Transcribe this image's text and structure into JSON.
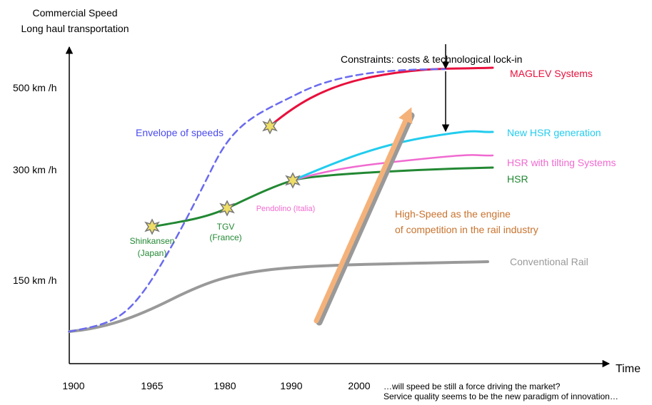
{
  "axis": {
    "y_title": [
      "Commercial Speed",
      "Long haul transportation"
    ],
    "x_title": "Time",
    "y_labels": [
      "500 km /h",
      "300 km /h",
      "150 km /h"
    ],
    "x_labels": [
      "1900",
      "1965",
      "1980",
      "1990",
      "2000"
    ]
  },
  "curves": {
    "maglev": "MAGLEV Systems",
    "new_hsr": "New HSR generation",
    "tilting": "HSR with tilting Systems",
    "hsr": "HSR",
    "conventional": "Conventional Rail",
    "envelope": "Envelope of speeds"
  },
  "milestones": {
    "shinkansen": [
      "Shinkansen",
      "(Japan)"
    ],
    "tgv": [
      "TGV",
      "(France)"
    ],
    "pendolino": "Pendolino (Italia)"
  },
  "annotations": {
    "constraints": "Constraints: costs & technological lock-in",
    "engine": [
      "High-Speed as the engine",
      "of competition in the rail industry"
    ],
    "question": [
      "…will speed be still a force driving the market?",
      "Service quality seems to be the new paradigm of innovation…"
    ]
  }
}
